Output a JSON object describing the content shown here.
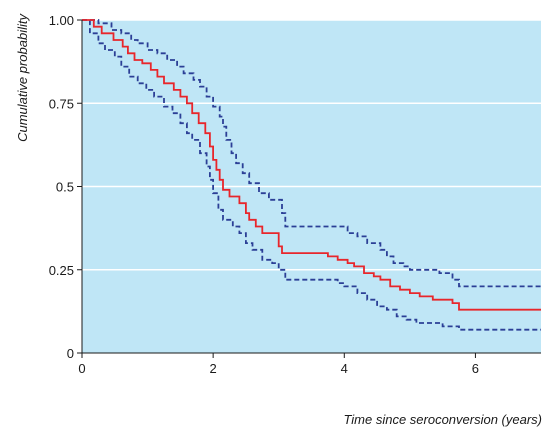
{
  "chart_data": {
    "type": "line",
    "title": "",
    "xlabel": "Time since seroconversion (years)",
    "ylabel": "Cumulative probability",
    "xlim": [
      0,
      7
    ],
    "ylim": [
      0,
      1
    ],
    "x_ticks": [
      0,
      2,
      4,
      6
    ],
    "x_tick_labels": [
      "0",
      "2",
      "4",
      "6"
    ],
    "y_ticks": [
      0,
      0.25,
      0.5,
      0.75,
      1.0
    ],
    "y_tick_labels": [
      "0",
      "0.25",
      "0.5",
      "0.75",
      "1.00"
    ],
    "grid": "horizontal",
    "step": true,
    "colors": {
      "background": "#bfe6f6",
      "grid": "#ffffff",
      "estimate": "#e8262b",
      "ci": "#2b3f96"
    },
    "series": [
      {
        "role": "estimate",
        "style": "solid",
        "color": "#e8262b",
        "points": [
          [
            0,
            1.0
          ],
          [
            0.18,
            0.98
          ],
          [
            0.3,
            0.96
          ],
          [
            0.48,
            0.94
          ],
          [
            0.62,
            0.92
          ],
          [
            0.7,
            0.9
          ],
          [
            0.8,
            0.88
          ],
          [
            0.92,
            0.87
          ],
          [
            1.05,
            0.85
          ],
          [
            1.15,
            0.83
          ],
          [
            1.25,
            0.81
          ],
          [
            1.4,
            0.79
          ],
          [
            1.5,
            0.77
          ],
          [
            1.6,
            0.75
          ],
          [
            1.68,
            0.72
          ],
          [
            1.78,
            0.69
          ],
          [
            1.88,
            0.66
          ],
          [
            1.95,
            0.62
          ],
          [
            2.0,
            0.58
          ],
          [
            2.05,
            0.55
          ],
          [
            2.1,
            0.52
          ],
          [
            2.15,
            0.49
          ],
          [
            2.25,
            0.47
          ],
          [
            2.4,
            0.45
          ],
          [
            2.5,
            0.42
          ],
          [
            2.55,
            0.4
          ],
          [
            2.65,
            0.38
          ],
          [
            2.75,
            0.36
          ],
          [
            3.0,
            0.32
          ],
          [
            3.05,
            0.3
          ],
          [
            3.6,
            0.3
          ],
          [
            3.75,
            0.29
          ],
          [
            3.9,
            0.28
          ],
          [
            4.05,
            0.27
          ],
          [
            4.15,
            0.26
          ],
          [
            4.3,
            0.24
          ],
          [
            4.45,
            0.23
          ],
          [
            4.55,
            0.22
          ],
          [
            4.7,
            0.2
          ],
          [
            4.85,
            0.19
          ],
          [
            5.0,
            0.18
          ],
          [
            5.15,
            0.17
          ],
          [
            5.35,
            0.16
          ],
          [
            5.65,
            0.15
          ],
          [
            5.75,
            0.13
          ],
          [
            7.0,
            0.13
          ]
        ]
      },
      {
        "role": "upper_ci",
        "style": "dashed",
        "color": "#2b3f96",
        "points": [
          [
            0,
            1.0
          ],
          [
            0.25,
            0.99
          ],
          [
            0.45,
            0.97
          ],
          [
            0.6,
            0.96
          ],
          [
            0.75,
            0.94
          ],
          [
            0.85,
            0.93
          ],
          [
            1.0,
            0.91
          ],
          [
            1.15,
            0.9
          ],
          [
            1.3,
            0.88
          ],
          [
            1.45,
            0.86
          ],
          [
            1.55,
            0.84
          ],
          [
            1.7,
            0.82
          ],
          [
            1.8,
            0.8
          ],
          [
            1.9,
            0.77
          ],
          [
            2.0,
            0.74
          ],
          [
            2.1,
            0.71
          ],
          [
            2.15,
            0.68
          ],
          [
            2.2,
            0.64
          ],
          [
            2.28,
            0.6
          ],
          [
            2.35,
            0.57
          ],
          [
            2.45,
            0.54
          ],
          [
            2.55,
            0.51
          ],
          [
            2.7,
            0.48
          ],
          [
            2.85,
            0.46
          ],
          [
            3.05,
            0.42
          ],
          [
            3.1,
            0.38
          ],
          [
            3.95,
            0.38
          ],
          [
            4.05,
            0.36
          ],
          [
            4.2,
            0.35
          ],
          [
            4.35,
            0.33
          ],
          [
            4.55,
            0.31
          ],
          [
            4.65,
            0.29
          ],
          [
            4.75,
            0.27
          ],
          [
            4.9,
            0.26
          ],
          [
            5.0,
            0.25
          ],
          [
            5.45,
            0.24
          ],
          [
            5.65,
            0.22
          ],
          [
            5.75,
            0.2
          ],
          [
            7.0,
            0.2
          ]
        ]
      },
      {
        "role": "lower_ci",
        "style": "dashed",
        "color": "#2b3f96",
        "points": [
          [
            0,
            1.0
          ],
          [
            0.12,
            0.96
          ],
          [
            0.25,
            0.93
          ],
          [
            0.35,
            0.91
          ],
          [
            0.5,
            0.89
          ],
          [
            0.6,
            0.86
          ],
          [
            0.72,
            0.83
          ],
          [
            0.85,
            0.81
          ],
          [
            0.98,
            0.79
          ],
          [
            1.1,
            0.77
          ],
          [
            1.25,
            0.74
          ],
          [
            1.38,
            0.72
          ],
          [
            1.5,
            0.69
          ],
          [
            1.6,
            0.66
          ],
          [
            1.68,
            0.64
          ],
          [
            1.8,
            0.6
          ],
          [
            1.9,
            0.56
          ],
          [
            1.95,
            0.52
          ],
          [
            2.0,
            0.48
          ],
          [
            2.08,
            0.43
          ],
          [
            2.15,
            0.4
          ],
          [
            2.3,
            0.38
          ],
          [
            2.4,
            0.36
          ],
          [
            2.5,
            0.33
          ],
          [
            2.6,
            0.31
          ],
          [
            2.75,
            0.28
          ],
          [
            2.9,
            0.27
          ],
          [
            3.0,
            0.25
          ],
          [
            3.1,
            0.22
          ],
          [
            3.9,
            0.21
          ],
          [
            4.0,
            0.2
          ],
          [
            4.2,
            0.18
          ],
          [
            4.35,
            0.16
          ],
          [
            4.5,
            0.14
          ],
          [
            4.65,
            0.13
          ],
          [
            4.8,
            0.11
          ],
          [
            4.95,
            0.1
          ],
          [
            5.1,
            0.09
          ],
          [
            5.5,
            0.08
          ],
          [
            5.75,
            0.07
          ],
          [
            7.0,
            0.07
          ]
        ]
      }
    ]
  }
}
